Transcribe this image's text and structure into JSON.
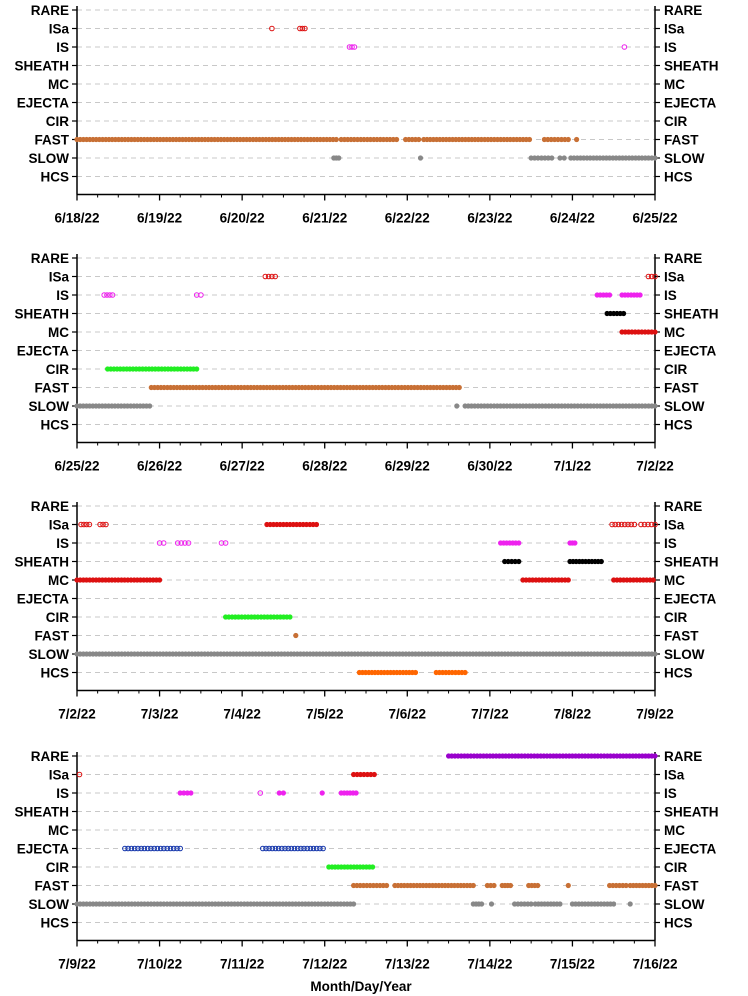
{
  "chart_data": {
    "type": "scatter",
    "xlabel": "Month/Day/Year",
    "categories": [
      "RARE",
      "ISa",
      "IS",
      "SHEATH",
      "MC",
      "EJECTA",
      "CIR",
      "FAST",
      "SLOW",
      "HCS"
    ],
    "colors": {
      "RARE": "#9900cc",
      "ISa": "#dd1111",
      "IS": "#ee22ee",
      "SHEATH": "#000000",
      "MC": "#dd1111",
      "EJECTA": "#1133aa",
      "CIR": "#22ee22",
      "FAST": "#c87035",
      "SLOW": "#888888",
      "HCS": "#ff6600"
    },
    "grid": "dashed horizontal",
    "panels": [
      {
        "xticks": [
          "6/18/22",
          "6/19/22",
          "6/20/22",
          "6/21/22",
          "6/22/22",
          "6/23/22",
          "6/24/22",
          "6/25/22"
        ],
        "xlim": [
          0,
          7
        ],
        "series": [
          {
            "category": "ISa",
            "hollow": true,
            "segments": [
              [
                2.36,
                2.36
              ],
              [
                2.7,
                2.76
              ]
            ]
          },
          {
            "category": "IS",
            "hollow": true,
            "segments": [
              [
                3.3,
                3.36
              ],
              [
                6.63,
                6.63
              ]
            ]
          },
          {
            "category": "FAST",
            "hollow": false,
            "segments": [
              [
                0.0,
                3.14
              ],
              [
                3.2,
                3.87
              ],
              [
                3.98,
                4.14
              ],
              [
                4.2,
                5.48
              ],
              [
                5.66,
                5.95
              ],
              [
                6.05,
                6.05
              ]
            ]
          },
          {
            "category": "SLOW",
            "hollow": false,
            "segments": [
              [
                3.11,
                3.17
              ],
              [
                4.16,
                4.16
              ],
              [
                5.5,
                5.75
              ],
              [
                5.85,
                5.9
              ],
              [
                5.98,
                7.0
              ]
            ]
          }
        ]
      },
      {
        "xticks": [
          "6/25/22",
          "6/26/22",
          "6/27/22",
          "6/28/22",
          "6/29/22",
          "6/30/22",
          "7/1/22",
          "7/2/22"
        ],
        "xlim": [
          0,
          7
        ],
        "series": [
          {
            "category": "ISa",
            "hollow": true,
            "segments": [
              [
                2.28,
                2.4
              ],
              [
                6.92,
                7.0
              ]
            ]
          },
          {
            "category": "IS",
            "hollow": true,
            "segments": [
              [
                0.33,
                0.43
              ],
              [
                1.45,
                1.5
              ]
            ]
          },
          {
            "category": "IS",
            "hollow": false,
            "segments": [
              [
                6.3,
                6.45
              ],
              [
                6.6,
                6.82
              ]
            ]
          },
          {
            "category": "SHEATH",
            "hollow": false,
            "segments": [
              [
                6.42,
                6.62
              ]
            ]
          },
          {
            "category": "MC",
            "hollow": false,
            "segments": [
              [
                6.6,
                7.0
              ]
            ]
          },
          {
            "category": "CIR",
            "hollow": false,
            "segments": [
              [
                0.37,
                1.45
              ]
            ]
          },
          {
            "category": "FAST",
            "hollow": false,
            "segments": [
              [
                0.9,
                4.63
              ]
            ]
          },
          {
            "category": "SLOW",
            "hollow": false,
            "segments": [
              [
                0.0,
                0.88
              ],
              [
                4.6,
                4.6
              ],
              [
                4.7,
                7.0
              ]
            ]
          }
        ]
      },
      {
        "xticks": [
          "7/2/22",
          "7/3/22",
          "7/4/22",
          "7/5/22",
          "7/6/22",
          "7/7/22",
          "7/8/22",
          "7/9/22"
        ],
        "xlim": [
          0,
          7
        ],
        "series": [
          {
            "category": "ISa",
            "hollow": true,
            "segments": [
              [
                0.05,
                0.15
              ],
              [
                0.28,
                0.35
              ],
              [
                6.48,
                6.75
              ],
              [
                6.83,
                7.0
              ]
            ]
          },
          {
            "category": "ISa",
            "hollow": false,
            "segments": [
              [
                2.3,
                2.9
              ]
            ]
          },
          {
            "category": "IS",
            "hollow": true,
            "segments": [
              [
                1.0,
                1.05
              ],
              [
                1.22,
                1.35
              ],
              [
                1.75,
                1.8
              ]
            ]
          },
          {
            "category": "IS",
            "hollow": false,
            "segments": [
              [
                5.13,
                5.35
              ],
              [
                5.97,
                6.03
              ]
            ]
          },
          {
            "category": "SHEATH",
            "hollow": false,
            "segments": [
              [
                5.18,
                5.35
              ],
              [
                5.97,
                6.35
              ]
            ]
          },
          {
            "category": "MC",
            "hollow": false,
            "segments": [
              [
                0.0,
                1.0
              ],
              [
                5.4,
                5.95
              ],
              [
                6.5,
                6.98
              ]
            ]
          },
          {
            "category": "CIR",
            "hollow": false,
            "segments": [
              [
                1.8,
                2.58
              ]
            ]
          },
          {
            "category": "FAST",
            "hollow": false,
            "segments": [
              [
                2.65,
                2.65
              ]
            ]
          },
          {
            "category": "SLOW",
            "hollow": false,
            "segments": [
              [
                0.0,
                7.0
              ]
            ]
          },
          {
            "category": "HCS",
            "hollow": false,
            "segments": [
              [
                3.42,
                4.1
              ],
              [
                4.35,
                4.7
              ]
            ]
          }
        ]
      },
      {
        "xticks": [
          "7/9/22",
          "7/10/22",
          "7/11/22",
          "7/12/22",
          "7/13/22",
          "7/14/22",
          "7/15/22",
          "7/16/22"
        ],
        "xlim": [
          0,
          7
        ],
        "series": [
          {
            "category": "RARE",
            "hollow": false,
            "segments": [
              [
                4.5,
                7.0
              ]
            ]
          },
          {
            "category": "ISa",
            "hollow": true,
            "segments": [
              [
                0.03,
                0.03
              ]
            ]
          },
          {
            "category": "ISa",
            "hollow": false,
            "segments": [
              [
                3.35,
                3.6
              ]
            ]
          },
          {
            "category": "IS",
            "hollow": true,
            "segments": [
              [
                2.22,
                2.22
              ]
            ]
          },
          {
            "category": "IS",
            "hollow": false,
            "segments": [
              [
                1.25,
                1.38
              ],
              [
                2.45,
                2.5
              ],
              [
                2.97,
                2.97
              ],
              [
                3.2,
                3.38
              ]
            ]
          },
          {
            "category": "EJECTA",
            "hollow": true,
            "segments": [
              [
                0.58,
                1.25
              ],
              [
                2.25,
                2.98
              ]
            ]
          },
          {
            "category": "CIR",
            "hollow": false,
            "segments": [
              [
                3.05,
                3.58
              ]
            ]
          },
          {
            "category": "FAST",
            "hollow": false,
            "segments": [
              [
                3.35,
                3.75
              ],
              [
                3.85,
                4.8
              ],
              [
                4.97,
                5.05
              ],
              [
                5.15,
                5.25
              ],
              [
                5.47,
                5.58
              ],
              [
                5.95,
                5.95
              ],
              [
                6.45,
                6.65
              ],
              [
                6.7,
                7.0
              ]
            ]
          },
          {
            "category": "SLOW",
            "hollow": false,
            "segments": [
              [
                0.0,
                3.35
              ],
              [
                4.8,
                4.9
              ],
              [
                5.02,
                5.02
              ],
              [
                5.3,
                5.5
              ],
              [
                5.55,
                5.85
              ],
              [
                6.0,
                6.5
              ],
              [
                6.7,
                6.7
              ]
            ]
          }
        ]
      }
    ]
  }
}
